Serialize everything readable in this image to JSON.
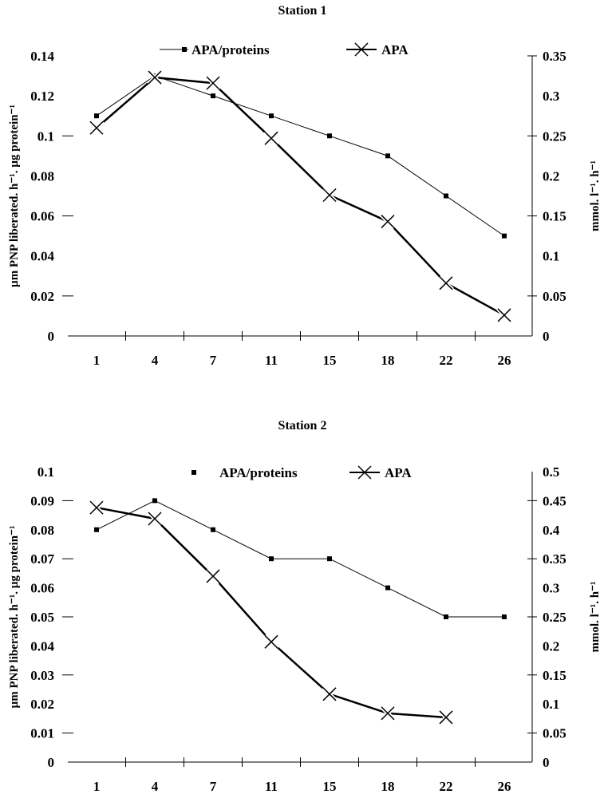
{
  "chart_data": [
    {
      "type": "line",
      "title": "Station 1",
      "categories": [
        "1",
        "4",
        "7",
        "11",
        "15",
        "18",
        "22",
        "26"
      ],
      "ylabel": "µm PNP liberated. h⁻¹. µg protein⁻¹",
      "y2label": "mmol. l⁻¹. h⁻¹",
      "ylim": [
        0,
        0.14
      ],
      "yticks": [
        "0",
        "0.02",
        "0.04",
        "0.06",
        "0.08",
        "0.1",
        "0.12",
        "0.14"
      ],
      "y2lim": [
        0,
        0.35
      ],
      "y2ticks": [
        "0",
        "0.05",
        "0.1",
        "0.15",
        "0.2",
        "0.25",
        "0.3",
        "0.35"
      ],
      "legend_position": "top-center",
      "series": [
        {
          "name": "APA/proteins",
          "axis": "left",
          "marker": "square",
          "values": [
            0.11,
            0.13,
            0.12,
            0.11,
            0.1,
            0.09,
            0.07,
            0.05
          ]
        },
        {
          "name": "APA",
          "axis": "right",
          "marker": "x",
          "values": [
            0.26,
            0.323,
            0.316,
            0.247,
            0.176,
            0.143,
            0.066,
            0.026
          ]
        }
      ]
    },
    {
      "type": "line",
      "title": "Station 2",
      "categories": [
        "1",
        "4",
        "7",
        "11",
        "15",
        "18",
        "22",
        "26"
      ],
      "ylabel": "µm PNP liberated. h⁻¹. µg protein⁻¹",
      "y2label": "mmol. l⁻¹. h⁻¹",
      "ylim": [
        0,
        0.1
      ],
      "yticks": [
        "0",
        "0.01",
        "0.02",
        "0.03",
        "0.04",
        "0.05",
        "0.06",
        "0.07",
        "0.08",
        "0.09",
        "0.1"
      ],
      "y2lim": [
        0,
        0.5
      ],
      "y2ticks": [
        "0",
        "0.05",
        "0.1",
        "0.15",
        "0.2",
        "0.25",
        "0.3",
        "0.35",
        "0.4",
        "0.45",
        "0.5"
      ],
      "legend_position": "top-center",
      "series": [
        {
          "name": "APA/proteins",
          "axis": "left",
          "marker": "square",
          "values": [
            0.08,
            0.09,
            0.08,
            0.07,
            0.07,
            0.06,
            0.05,
            0.05
          ]
        },
        {
          "name": "APA",
          "axis": "right",
          "marker": "x",
          "values": [
            0.438,
            0.419,
            0.32,
            0.207,
            0.117,
            0.084,
            0.077,
            null
          ]
        }
      ]
    }
  ]
}
